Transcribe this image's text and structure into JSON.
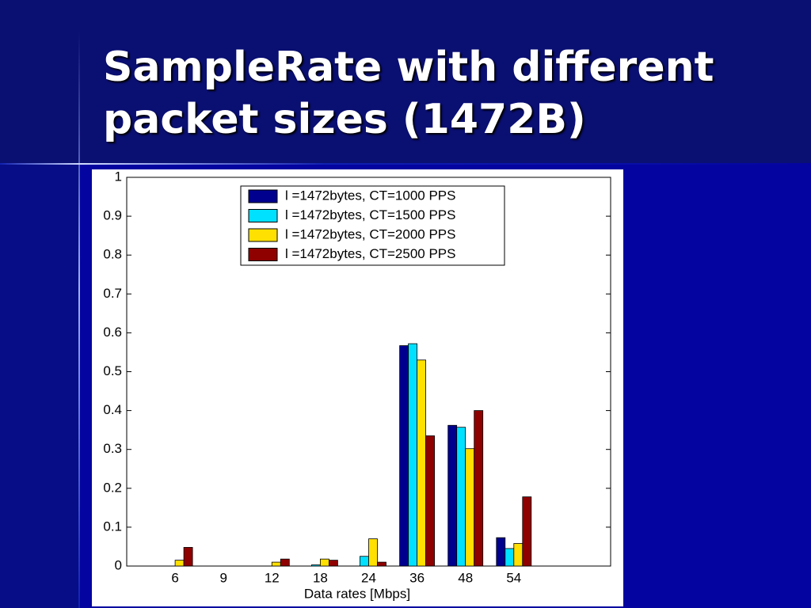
{
  "slide": {
    "title_lines": [
      "SampleRate with different",
      "packet sizes (1472B)"
    ]
  },
  "chart_data": {
    "type": "bar",
    "categories": [
      "6",
      "9",
      "12",
      "18",
      "24",
      "36",
      "48",
      "54"
    ],
    "x_label": "Data rates [Mbps]",
    "series": [
      {
        "name": "l =1472bytes, CT=1000 PPS",
        "color": "#00008f",
        "values": [
          0,
          0,
          0,
          0,
          0,
          0.567,
          0.362,
          0.073
        ]
      },
      {
        "name": "l =1472bytes, CT=1500 PPS",
        "color": "#00e0ff",
        "values": [
          0,
          0,
          0,
          0.003,
          0.025,
          0.572,
          0.357,
          0.045
        ]
      },
      {
        "name": "l =1472bytes, CT=2000 PPS",
        "color": "#ffe000",
        "values": [
          0.015,
          0,
          0.01,
          0.018,
          0.07,
          0.53,
          0.302,
          0.058
        ]
      },
      {
        "name": "l =1472bytes, CT=2500 PPS",
        "color": "#8f0000",
        "values": [
          0.048,
          0,
          0.018,
          0.015,
          0.01,
          0.335,
          0.4,
          0.178
        ]
      }
    ],
    "ylim": [
      0,
      1
    ],
    "yticks": [
      0,
      0.1,
      0.2,
      0.3,
      0.4,
      0.5,
      0.6,
      0.7,
      0.8,
      0.9,
      1
    ],
    "grid": false,
    "legend": "top"
  }
}
